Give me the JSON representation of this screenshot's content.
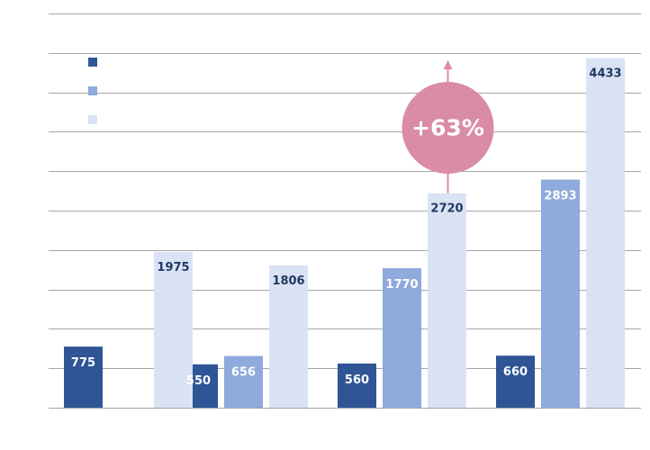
{
  "chart_data": {
    "type": "bar",
    "categories": [
      "",
      "",
      "",
      ""
    ],
    "series": [
      {
        "values": [
          775,
          550,
          560,
          660
        ],
        "color": "#2f5597"
      },
      {
        "values": [
          null,
          656,
          1770,
          2893
        ],
        "color": "#8faadc"
      },
      {
        "values": [
          1975,
          1806,
          2720,
          4433
        ],
        "color": "#dae3f3"
      }
    ],
    "ylim": [
      0,
      5000
    ],
    "y_gridline_step": 500,
    "grid": true,
    "legend": {
      "placement": "top-left",
      "entries": [
        "",
        "",
        ""
      ]
    },
    "annotation": {
      "text": "+63%",
      "color": "#da8ca6",
      "attached_to": {
        "category_index": 2,
        "series_index": 2
      }
    },
    "label_colors": {
      "dark_bar": "#ffffff",
      "light_bar": "#1f3864"
    }
  }
}
